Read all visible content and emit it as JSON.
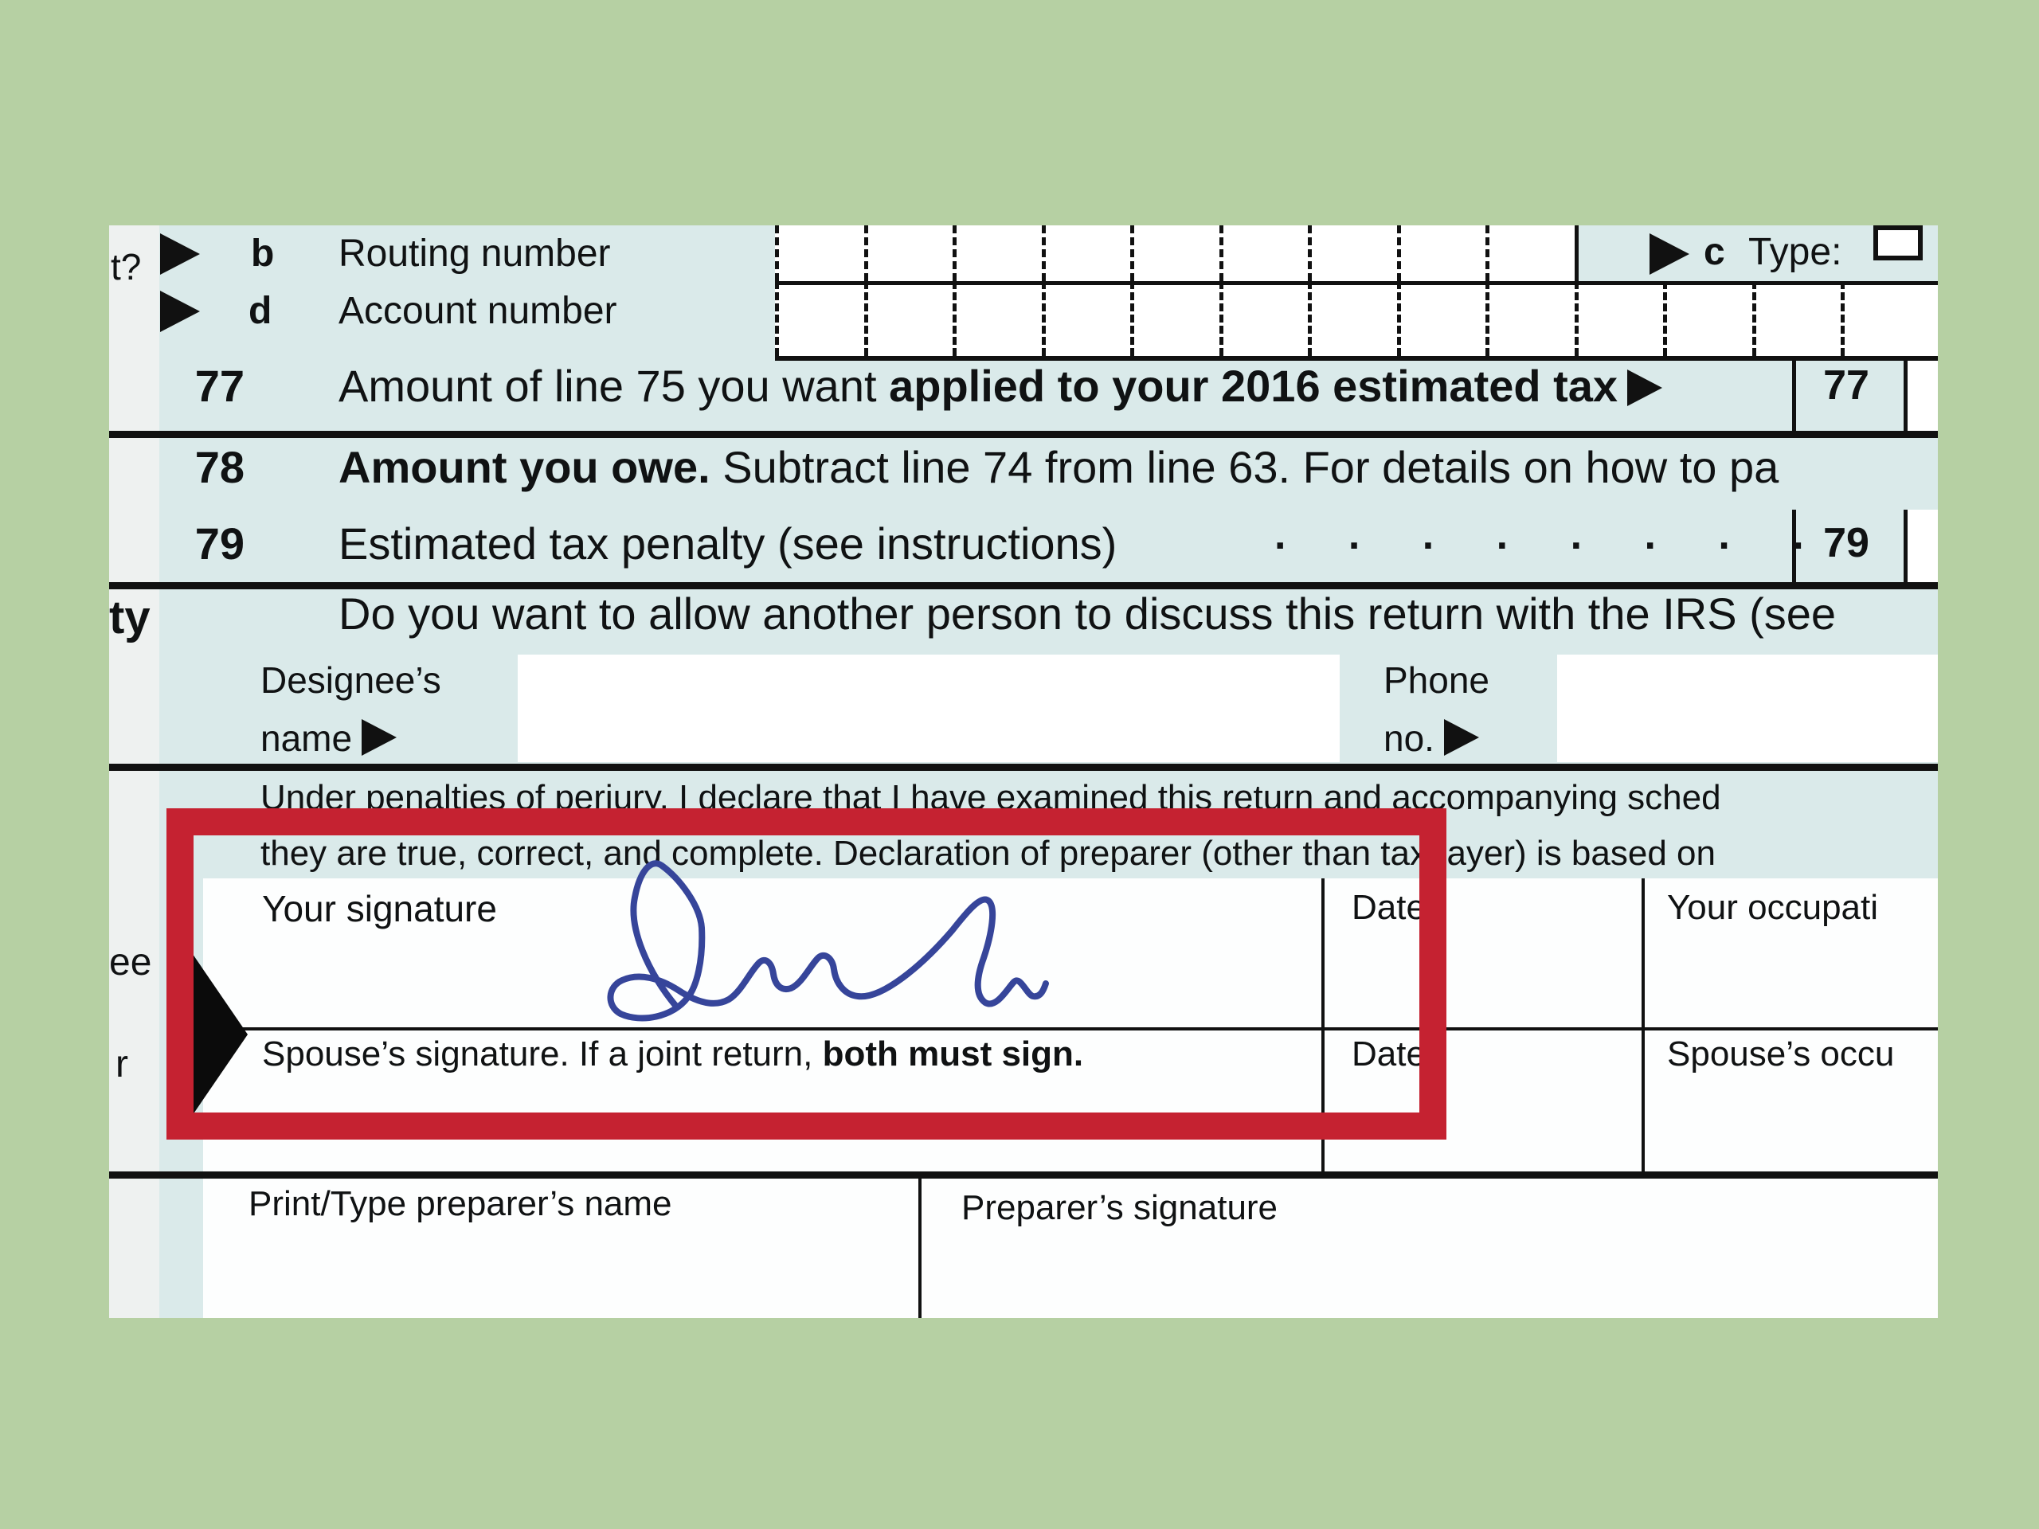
{
  "background_color": "#b6d0a3",
  "colors": {
    "highlight_red": "#c52231",
    "ink_blue": "#36459a",
    "form_blue": "#daeaea"
  },
  "margin_fragments": {
    "deposit_q": "t?",
    "party": "ty",
    "see": "ee",
    "your": "r"
  },
  "direct_deposit": {
    "b_letter": "b",
    "b_label": "Routing number",
    "c_letter": "c",
    "c_label": "Type:",
    "d_letter": "d",
    "d_label": "Account number"
  },
  "line77": {
    "number": "77",
    "text": "Amount of line 75 you want ",
    "text_bold": "applied to your 2016 estimated tax",
    "box_label": "77"
  },
  "line78": {
    "number": "78",
    "text_bold": "Amount you owe.",
    "text": " Subtract line 74 from line 63. For details on how to pa"
  },
  "line79": {
    "number": "79",
    "text": "Estimated tax penalty (see instructions)",
    "dot_leader": ". . . . . . . .",
    "box_label": "79"
  },
  "third_party": {
    "question": "Do you want to allow another person to discuss this return with the IRS (see",
    "designee_line1": "Designee’s",
    "designee_line2": "name",
    "phone_line1": "Phone",
    "phone_line2": "no."
  },
  "sign_here": {
    "perjury_line1": "Under penalties of perjury, I declare that I have examined this return and accompanying sched",
    "perjury_line2": "they are true, correct, and complete. Declaration of preparer (other than taxpayer) is based on",
    "your_signature_label": "Your signature",
    "date_label": "Date",
    "your_occupation_label": "Your occupati",
    "spouse_signature_text": "Spouse’s signature. If a joint return, ",
    "spouse_signature_bold": "both must sign.",
    "spouse_date_label": "Date",
    "spouse_occupation_label": "Spouse’s occu"
  },
  "paid_preparer": {
    "name_label": "Print/Type preparer’s name",
    "signature_label": "Preparer’s signature"
  }
}
